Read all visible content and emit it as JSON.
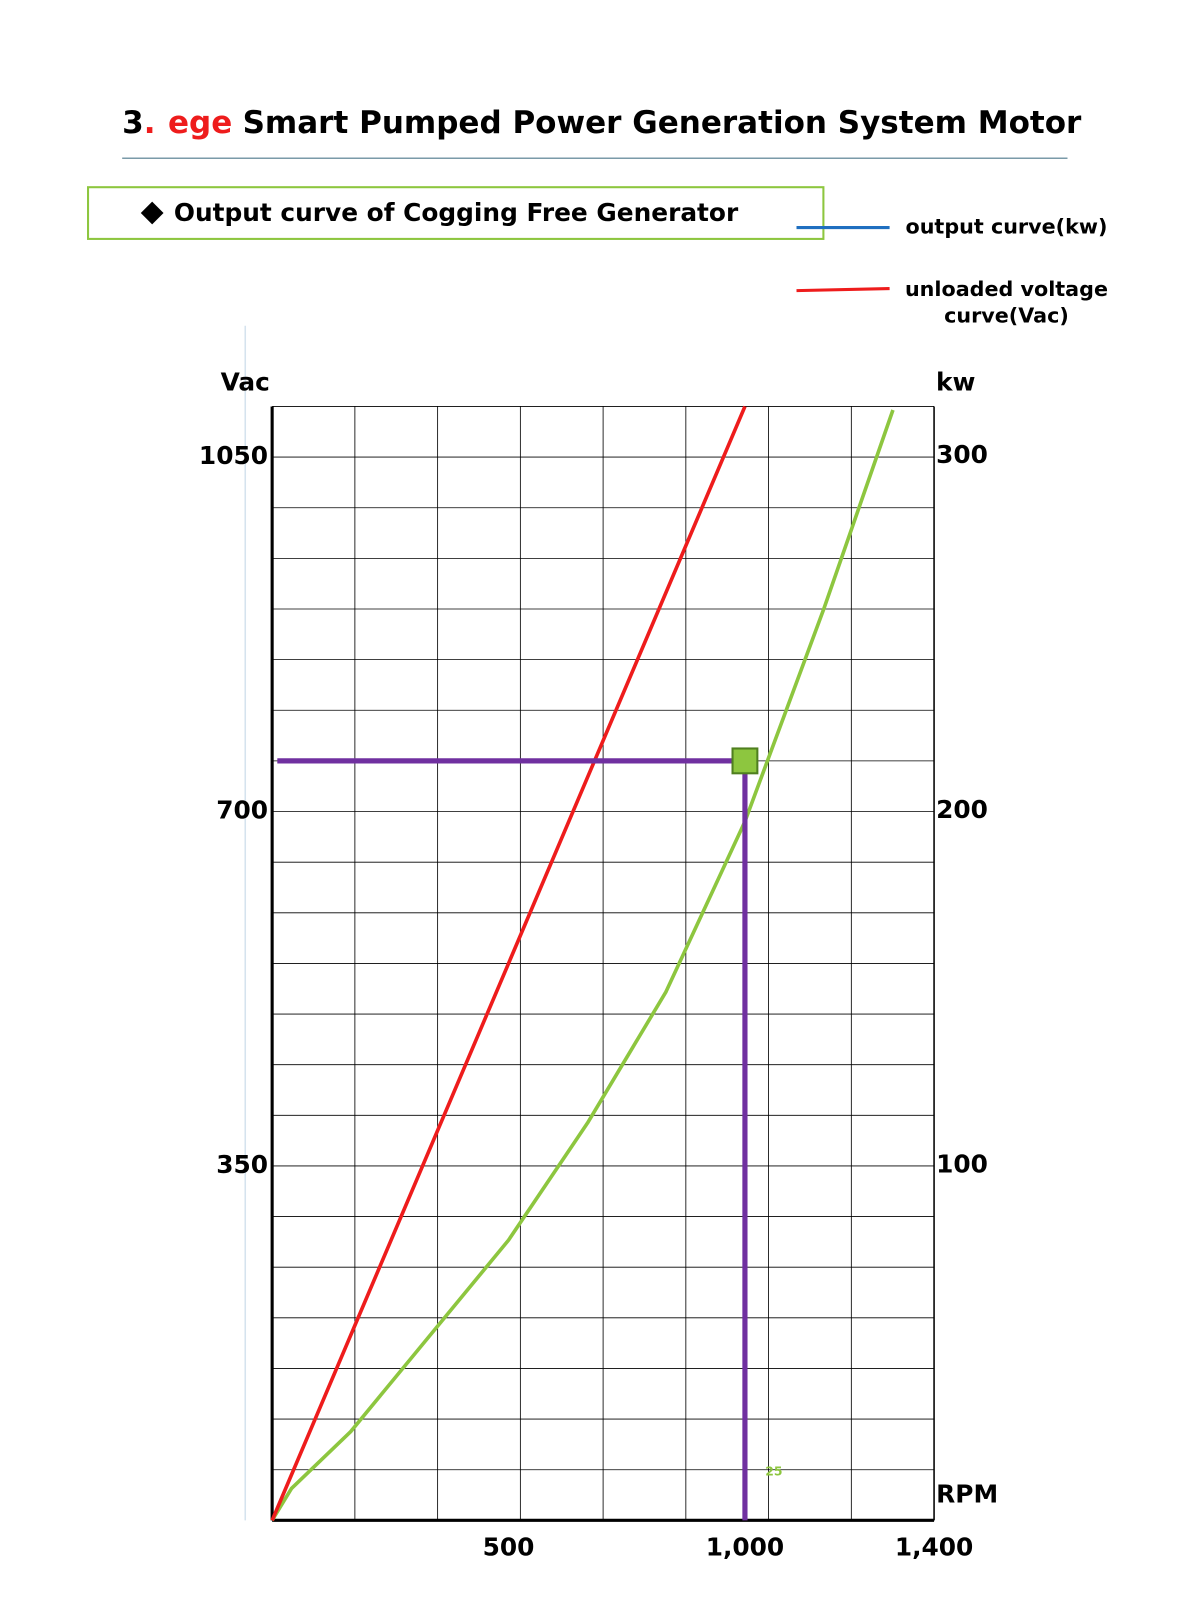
{
  "header": {
    "number": "3",
    "dot": ".",
    "brand": "ege",
    "title": "Smart Pumped Power Generation System Motor"
  },
  "chart_data": {
    "type": "line",
    "subtitle": "Output curve of  Cogging Free Generator",
    "ylabel": "Vac",
    "y2label": "kw",
    "xlabel": "RPM",
    "annotation": "25",
    "xlim": [
      0,
      1400
    ],
    "xticks": [
      500,
      {
        "value": 1000,
        "label": "1,000"
      },
      {
        "value": 1400,
        "label": "1,400"
      }
    ],
    "xgrid": [
      175,
      350,
      525,
      700,
      875,
      1050,
      1225
    ],
    "ylim": [
      0,
      1100
    ],
    "yticks": [
      350,
      700,
      1050
    ],
    "ygrid": [
      50,
      100,
      150,
      200,
      250,
      300,
      350,
      400,
      450,
      500,
      550,
      600,
      650,
      700,
      750,
      800,
      850,
      900,
      950,
      1000,
      1050,
      1100
    ],
    "y2lim": [
      0,
      314
    ],
    "y2ticks": [
      100,
      200,
      300
    ],
    "series": [
      {
        "name": "output curve(kw)",
        "color": "#8dc63f",
        "legend_color": "#1f6fc0",
        "axis": "y2",
        "x": [
          0,
          41,
          166,
          333,
          500,
          667,
          833,
          1000,
          1167,
          1313
        ],
        "values": [
          0,
          9,
          25,
          52,
          79,
          112,
          149,
          197,
          257,
          313
        ]
      },
      {
        "name": "unloaded voltage curve(Vac)",
        "color": "#ee1c1c",
        "legend_color": "#ee1c1c",
        "x": [
          0,
          500,
          1000
        ],
        "values": [
          0,
          550,
          1100
        ]
      }
    ],
    "highlight": {
      "x": 1000,
      "y": 750,
      "color": "#7030a0",
      "marker_color": "#8dc63f"
    }
  }
}
